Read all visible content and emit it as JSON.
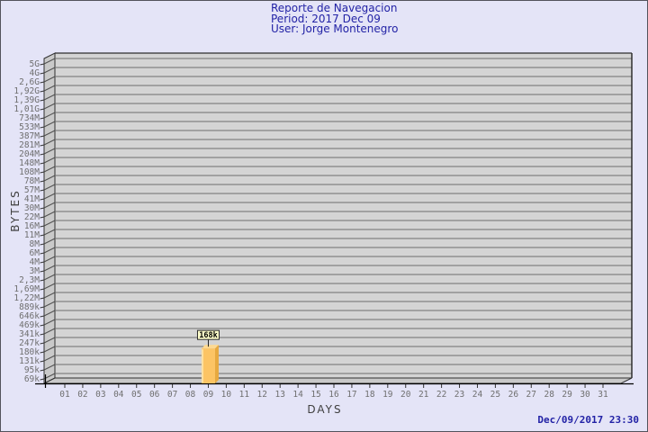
{
  "header": {
    "title": "Reporte de Navegacion",
    "period": "Period: 2017 Dec 09",
    "user": "User: Jorge Montenegro"
  },
  "footer": {
    "timestamp": "Dec/09/2017 23:30"
  },
  "chart_data": {
    "type": "bar",
    "title": "Reporte de Navegacion",
    "subtitle": "Period: 2017 Dec 09 — User: Jorge Montenegro",
    "xlabel": "DAYS",
    "ylabel": "BYTES",
    "scale": "log",
    "grid": true,
    "legend_position": "none",
    "x_categories": [
      "01",
      "02",
      "03",
      "04",
      "05",
      "06",
      "07",
      "08",
      "09",
      "10",
      "11",
      "12",
      "13",
      "14",
      "15",
      "16",
      "17",
      "18",
      "19",
      "20",
      "21",
      "22",
      "23",
      "24",
      "25",
      "26",
      "27",
      "28",
      "29",
      "30",
      "31"
    ],
    "y_tick_labels": [
      "5G",
      "4G",
      "2,6G",
      "1,92G",
      "1,39G",
      "1,01G",
      "734M",
      "533M",
      "387M",
      "281M",
      "204M",
      "148M",
      "108M",
      "78M",
      "57M",
      "41M",
      "30M",
      "22M",
      "16M",
      "11M",
      "8M",
      "6M",
      "4M",
      "3M",
      "2,3M",
      "1,69M",
      "1,22M",
      "889k",
      "646k",
      "469k",
      "341k",
      "247k",
      "180k",
      "131k",
      "95k",
      "69k"
    ],
    "y_min_bytes": 69000,
    "y_max_bytes": 5000000000,
    "bars": [
      {
        "day": "09",
        "value_bytes": 168000,
        "label": "168k"
      }
    ],
    "colors": {
      "plot_bg": "#d4d4d4",
      "grid_line": "#6e6e6e",
      "wall_fill": "#c9c9c9",
      "wall_line": "#4f4f4f",
      "plot_border": "#2f2f2f",
      "axis_line": "#000000",
      "tick_label": "#6f6f6f",
      "bar_front": "#fcc464",
      "bar_top": "#fdd992",
      "bar_side": "#e7a93f",
      "bar_highlight": "#fde1a4",
      "annotation_bg": "#ffffca",
      "annotation_border": "#2b2b2b",
      "annotation_text": "#000000"
    }
  },
  "colors": {
    "background": "#e4e4f7",
    "border": "#53535c",
    "header_text": "#2323a6",
    "axis_title_text": "#3f3f3f",
    "timestamp_text": "#2222a6"
  }
}
